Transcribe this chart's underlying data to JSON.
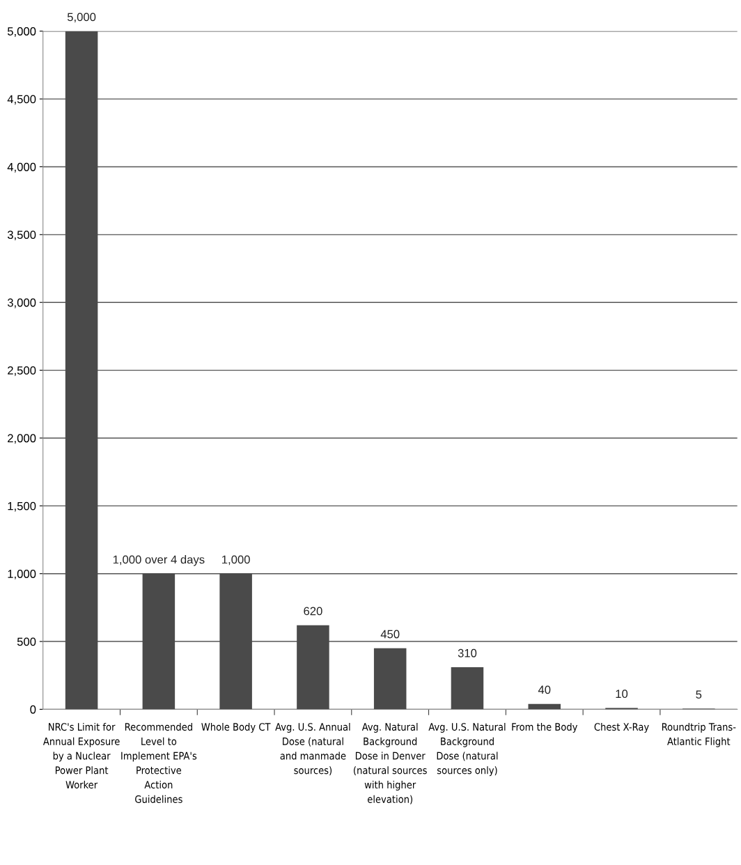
{
  "chart_data": {
    "type": "bar",
    "categories": [
      "NRC's Limit for\nAnnual Exposure\nby a Nuclear\nPower Plant\nWorker",
      "Recommended\nLevel to\nImplement EPA's\nProtective\nAction\nGuidelines",
      "Whole Body CT",
      "Avg. U.S. Annual\nDose (natural\nand manmade\nsources)",
      "Avg. Natural\nBackground\nDose in Denver\n(natural sources\nwith higher\nelevation)",
      "Avg. U.S. Natural\nBackground\nDose (natural\nsources only)",
      "From the Body",
      "Chest X-Ray",
      "Roundtrip Trans-\nAtlantic Flight"
    ],
    "values": [
      5000,
      1000,
      1000,
      620,
      450,
      310,
      40,
      10,
      5
    ],
    "value_labels": [
      "5,000",
      "1,000 over 4 days",
      "1,000",
      "620",
      "450",
      "310",
      "40",
      "10",
      "5"
    ],
    "color": "#4a4a4a",
    "ylim": [
      0,
      5000
    ],
    "yticks": [
      {
        "value": 0,
        "label": "0"
      },
      {
        "value": 500,
        "label": "500"
      },
      {
        "value": 1000,
        "label": "1,000"
      },
      {
        "value": 1500,
        "label": "1,500"
      },
      {
        "value": 2000,
        "label": "2,000"
      },
      {
        "value": 2500,
        "label": "2,500"
      },
      {
        "value": 3000,
        "label": "3,000"
      },
      {
        "value": 3500,
        "label": "3,500"
      },
      {
        "value": 4000,
        "label": "4,000"
      },
      {
        "value": 4500,
        "label": "4,500"
      },
      {
        "value": 5000,
        "label": "5,000"
      }
    ],
    "grid": "y"
  }
}
